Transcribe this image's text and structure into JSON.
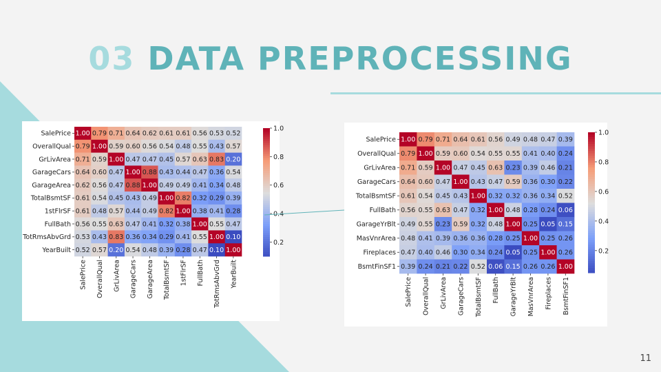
{
  "slide": {
    "title_num": "03",
    "title_text": "DATA PREPROCESSING",
    "page_number": "11"
  },
  "chart_data": [
    {
      "type": "heatmap",
      "labels": [
        "SalePrice",
        "OverallQual",
        "GrLivArea",
        "GarageCars",
        "GarageArea",
        "TotalBsmtSF",
        "1stFlrSF",
        "FullBath",
        "TotRmsAbvGrd",
        "YearBuilt"
      ],
      "values": [
        [
          1.0,
          0.79,
          0.71,
          0.64,
          0.62,
          0.61,
          0.61,
          0.56,
          0.53,
          0.52
        ],
        [
          0.79,
          1.0,
          0.59,
          0.6,
          0.56,
          0.54,
          0.48,
          0.55,
          0.43,
          0.57
        ],
        [
          0.71,
          0.59,
          1.0,
          0.47,
          0.47,
          0.45,
          0.57,
          0.63,
          0.83,
          0.2
        ],
        [
          0.64,
          0.6,
          0.47,
          1.0,
          0.88,
          0.43,
          0.44,
          0.47,
          0.36,
          0.54
        ],
        [
          0.62,
          0.56,
          0.47,
          0.88,
          1.0,
          0.49,
          0.49,
          0.41,
          0.34,
          0.48
        ],
        [
          0.61,
          0.54,
          0.45,
          0.43,
          0.49,
          1.0,
          0.82,
          0.32,
          0.29,
          0.39
        ],
        [
          0.61,
          0.48,
          0.57,
          0.44,
          0.49,
          0.82,
          1.0,
          0.38,
          0.41,
          0.28
        ],
        [
          0.56,
          0.55,
          0.63,
          0.47,
          0.41,
          0.32,
          0.38,
          1.0,
          0.55,
          0.47
        ],
        [
          0.53,
          0.43,
          0.83,
          0.36,
          0.34,
          0.29,
          0.41,
          0.55,
          1.0,
          0.1
        ],
        [
          0.52,
          0.57,
          0.2,
          0.54,
          0.48,
          0.39,
          0.28,
          0.47,
          0.1,
          1.0
        ]
      ],
      "colorbar_ticks": [
        "1.0",
        "0.8",
        "0.6",
        "0.4",
        "0.2"
      ],
      "colorbar_tick_values": [
        1.0,
        0.8,
        0.6,
        0.4,
        0.2
      ],
      "colorbar_range": [
        0.1,
        1.0
      ],
      "colormap": "coolwarm"
    },
    {
      "type": "heatmap",
      "labels": [
        "SalePrice",
        "OverallQual",
        "GrLivArea",
        "GarageCars",
        "TotalBsmtSF",
        "FullBath",
        "GarageYrBlt",
        "MasVnrArea",
        "Fireplaces",
        "BsmtFinSF1"
      ],
      "values": [
        [
          1.0,
          0.79,
          0.71,
          0.64,
          0.61,
          0.56,
          0.49,
          0.48,
          0.47,
          0.39
        ],
        [
          0.79,
          1.0,
          0.59,
          0.6,
          0.54,
          0.55,
          0.55,
          0.41,
          0.4,
          0.24
        ],
        [
          0.71,
          0.59,
          1.0,
          0.47,
          0.45,
          0.63,
          0.23,
          0.39,
          0.46,
          0.21
        ],
        [
          0.64,
          0.6,
          0.47,
          1.0,
          0.43,
          0.47,
          0.59,
          0.36,
          0.3,
          0.22
        ],
        [
          0.61,
          0.54,
          0.45,
          0.43,
          1.0,
          0.32,
          0.32,
          0.36,
          0.34,
          0.52
        ],
        [
          0.56,
          0.55,
          0.63,
          0.47,
          0.32,
          1.0,
          0.48,
          0.28,
          0.24,
          0.06
        ],
        [
          0.49,
          0.55,
          0.23,
          0.59,
          0.32,
          0.48,
          1.0,
          0.25,
          0.05,
          0.15
        ],
        [
          0.48,
          0.41,
          0.39,
          0.36,
          0.36,
          0.28,
          0.25,
          1.0,
          0.25,
          0.26
        ],
        [
          0.47,
          0.4,
          0.46,
          0.3,
          0.34,
          0.24,
          0.05,
          0.25,
          1.0,
          0.26
        ],
        [
          0.39,
          0.24,
          0.21,
          0.22,
          0.52,
          0.06,
          0.15,
          0.26,
          0.26,
          1.0
        ]
      ],
      "colorbar_ticks": [
        "1.0",
        "0.8",
        "0.6",
        "0.4",
        "0.2"
      ],
      "colorbar_tick_values": [
        1.0,
        0.8,
        0.6,
        0.4,
        0.2
      ],
      "colorbar_range": [
        0.05,
        1.0
      ],
      "colormap": "coolwarm"
    }
  ]
}
